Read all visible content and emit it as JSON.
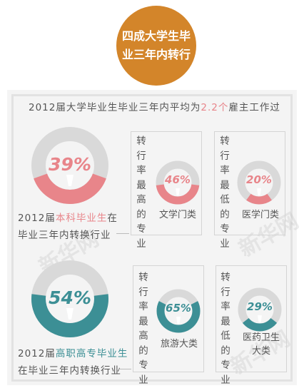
{
  "badge": {
    "line1": "四成大学生毕",
    "line2": "业三年内转行"
  },
  "intro": {
    "prefix": "2012届大学毕业生毕业三年内平均为",
    "highlight": "2.2个",
    "suffix": "雇主工作过"
  },
  "colors": {
    "badge": "#d3852a",
    "pink": "#e8858a",
    "teal": "#3c8f95",
    "gray": "#d9d9d9",
    "panel": "#f4f4f4"
  },
  "undergrad": {
    "percent": "39%",
    "value": 0.39,
    "label_prefix": "2012届",
    "label_highlight": "本科毕业生",
    "label_suffix": "在",
    "label_line2": "毕业三年内转换行业",
    "highest": {
      "caption": "转行率最高的专业",
      "percent": "46%",
      "value": 0.46,
      "category": "文学门类"
    },
    "lowest": {
      "caption": "转行率最低的专业",
      "percent": "20%",
      "value": 0.2,
      "category": "医学门类"
    }
  },
  "vocational": {
    "percent": "54%",
    "value": 0.54,
    "label_prefix": "2012届",
    "label_highlight": "高职高专毕业生",
    "label_line2": "在毕业三年内转换行业",
    "highest": {
      "caption": "转行率最高的专业",
      "percent": "65%",
      "value": 0.65,
      "category": "旅游大类"
    },
    "lowest": {
      "caption": "转行率最低的专业",
      "percent": "29%",
      "value": 0.29,
      "category_line1": "医药卫生",
      "category_line2": "大类"
    }
  },
  "watermark": {
    "text": "新华网",
    "sub": "www.xinhuanet.com"
  }
}
